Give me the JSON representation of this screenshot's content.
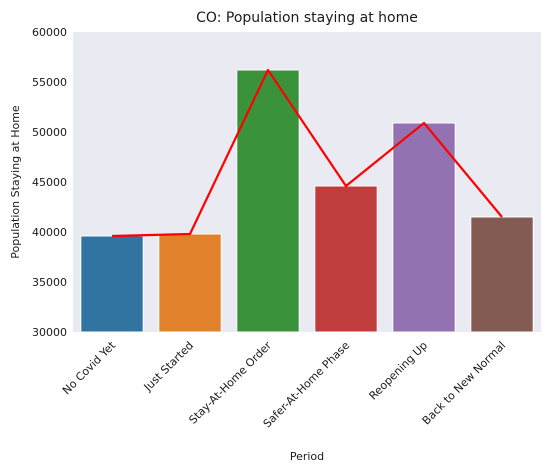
{
  "chart_data": {
    "type": "bar",
    "title": "CO: Population staying at home",
    "xlabel": "Period",
    "ylabel": "Population Staying at Home",
    "categories": [
      "No Covid Yet",
      "Just Started",
      "Stay-At-Home Order",
      "Safer-At-Home Phase",
      "Reopening Up",
      "Back to New Normal"
    ],
    "values": [
      39600,
      39800,
      56200,
      44600,
      50900,
      41500
    ],
    "bar_colors": [
      "#3274a1",
      "#e1812c",
      "#3a923a",
      "#c03d3e",
      "#9372b2",
      "#845b53"
    ],
    "line": {
      "values": [
        39600,
        39800,
        56200,
        44600,
        50900,
        41500
      ],
      "color": "#ff0000"
    },
    "ylim": [
      30000,
      60000
    ],
    "yticks": [
      30000,
      35000,
      40000,
      45000,
      50000,
      55000,
      60000
    ],
    "grid": false,
    "background": "#eaeaf2"
  }
}
